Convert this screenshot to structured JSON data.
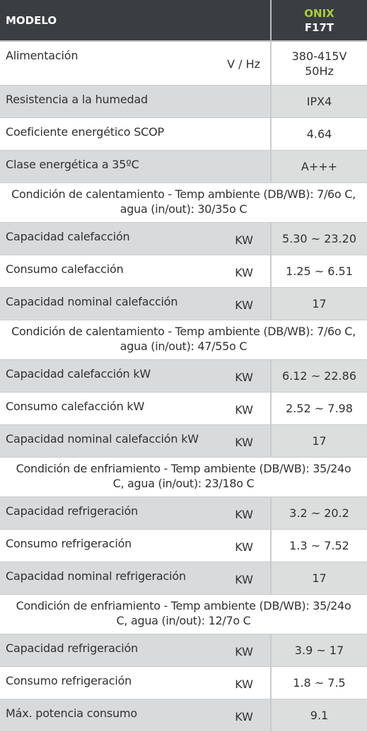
{
  "header": {
    "label": "MODELO",
    "brand": "ONIX",
    "model": "F17T"
  },
  "sections": [
    {
      "type": "row",
      "shade": false,
      "label": "Alimentación",
      "unit": "V / Hz",
      "value_line1": "380-415V",
      "value_line2": "50Hz"
    },
    {
      "type": "row",
      "shade": true,
      "label": "Resistencia a la humedad",
      "unit": "",
      "value": "IPX4"
    },
    {
      "type": "row",
      "shade": false,
      "label": "Coeficiente energético SCOP",
      "unit": "",
      "value": "4.64"
    },
    {
      "type": "row",
      "shade": true,
      "label": "Clase energética a 35ºC",
      "unit": "",
      "value": "A+++"
    },
    {
      "type": "cond",
      "line1": "Condición de calentamiento - Temp ambiente (DB/WB): 7/6o C,",
      "line2": "agua (in/out): 30/35o C"
    },
    {
      "type": "row",
      "shade": true,
      "label": "Capacidad calefacción",
      "unit": "KW",
      "value": "5.30 ~ 23.20"
    },
    {
      "type": "row",
      "shade": false,
      "label": "Consumo calefacción",
      "unit": "KW",
      "value": "1.25 ~ 6.51"
    },
    {
      "type": "row",
      "shade": true,
      "label": "Capacidad nominal calefacción",
      "unit": "KW",
      "value": "17"
    },
    {
      "type": "cond",
      "line1": "Condición de calentamiento - Temp ambiente (DB/WB): 7/6o C,",
      "line2": "agua (in/out): 47/55o C"
    },
    {
      "type": "row",
      "shade": true,
      "label": "Capacidad calefacción kW",
      "unit": "KW",
      "value": "6.12 ~ 22.86"
    },
    {
      "type": "row",
      "shade": false,
      "label": "Consumo calefacción kW",
      "unit": "KW",
      "value": "2.52 ~ 7.98"
    },
    {
      "type": "row",
      "shade": true,
      "label": "Capacidad nominal calefacción kW",
      "unit": "KW",
      "value": "17"
    },
    {
      "type": "cond",
      "line1": "Condición de enfriamiento - Temp ambiente (DB/WB): 35/24o",
      "line2": "C, agua (in/out): 23/18o C"
    },
    {
      "type": "row",
      "shade": true,
      "label": "Capacidad refrigeración",
      "unit": "KW",
      "value": "3.2 ~ 20.2"
    },
    {
      "type": "row",
      "shade": false,
      "label": "Consumo refrigeración",
      "unit": "KW",
      "value": "1.3 ~ 7.52"
    },
    {
      "type": "row",
      "shade": true,
      "label": "Capacidad nominal refrigeración",
      "unit": "KW",
      "value": "17"
    },
    {
      "type": "cond",
      "line1": "Condición de enfriamiento - Temp ambiente (DB/WB): 35/24o",
      "line2": "C, agua (in/out): 12/7o C"
    },
    {
      "type": "row",
      "shade": true,
      "label": "Capacidad refrigeración",
      "unit": "KW",
      "value": "3.9 ~ 17"
    },
    {
      "type": "row",
      "shade": false,
      "label": "Consumo refrigeración",
      "unit": "KW",
      "value": "1.8 ~ 7.5"
    },
    {
      "type": "row",
      "shade": true,
      "label": "Máx. potencia consumo",
      "unit": "KW",
      "value": "9.1"
    }
  ],
  "colors": {
    "header_bg": "#3a3d41",
    "brand_green": "#a9cf38",
    "row_shade": "#d9dadb",
    "text": "#2f3133"
  }
}
